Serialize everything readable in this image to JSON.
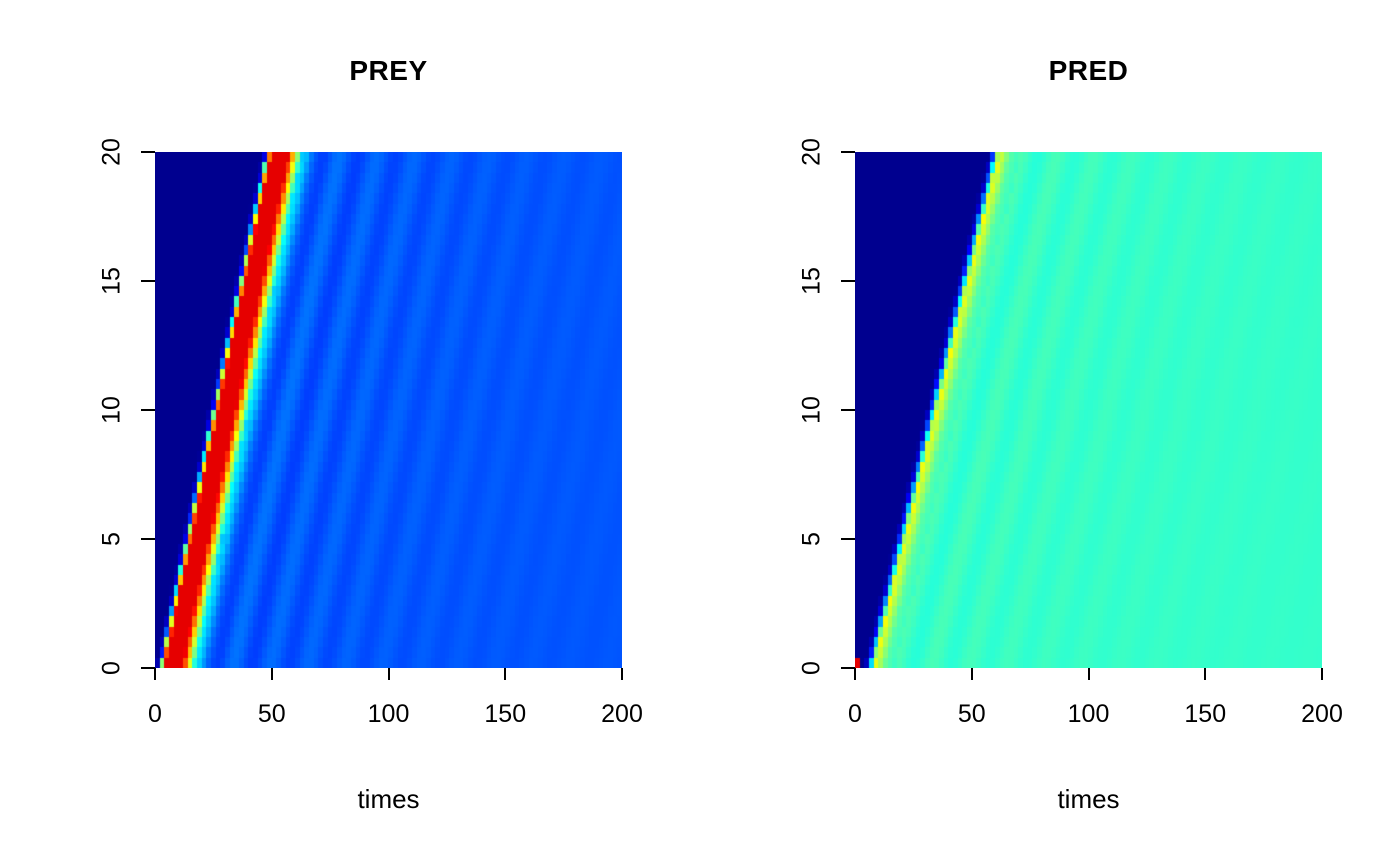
{
  "figure": {
    "background": "#ffffff",
    "description": "Two-panel space-time heatmap (R image plot style) of a predator-prey reaction-diffusion simulation showing traveling wave fronts; x-axis = times (0-200), y-axis = space (0-20), jet colormap from dark blue (low) to dark red (high)"
  },
  "chart_data": [
    {
      "type": "heatmap",
      "title": "PREY",
      "xlabel": "times",
      "ylabel": "",
      "xlim": [
        0,
        200
      ],
      "ylim": [
        0,
        20
      ],
      "xtick_values": [
        0,
        50,
        100,
        150,
        200
      ],
      "xticks": [
        "0",
        "50",
        "100",
        "150",
        "200"
      ],
      "ytick_values": [
        0,
        5,
        10,
        15,
        20
      ],
      "yticks": [
        "0",
        "5",
        "10",
        "15",
        "20"
      ],
      "grid": {
        "nx": 100,
        "ny": 50
      },
      "colormap": {
        "name": "jet",
        "stops": [
          [
            0,
            "#00008F"
          ],
          [
            0.125,
            "#0000FF"
          ],
          [
            0.375,
            "#00FFFF"
          ],
          [
            0.625,
            "#FFFF00"
          ],
          [
            0.875,
            "#FF0000"
          ],
          [
            1,
            "#800000"
          ]
        ]
      },
      "wave": {
        "description": "Traveling prey pulse: near-zero (dark navy) ahead of front, sharp red crest moving from t~2 at y=0 to t~50 at y=20, relaxing behind the front to ~0.2 (royal blue) with faint damped oscillatory stripes parallel to the front",
        "front_time_at_y0": 1.5,
        "front_speed_dt_per_dy": 2.3,
        "profile_keypoints": [
          [
            -1.5,
            0
          ],
          [
            0,
            0.1
          ],
          [
            1,
            0.5
          ],
          [
            2.5,
            0.9
          ],
          [
            10,
            0.9
          ],
          [
            13,
            0.6
          ],
          [
            16,
            0.32
          ],
          [
            20,
            0.24
          ],
          [
            26,
            0.21
          ],
          [
            1000,
            0.2
          ]
        ],
        "oscillation": {
          "start": 16,
          "amplitude": 0.035,
          "period": 16,
          "decay": 70
        }
      }
    },
    {
      "type": "heatmap",
      "title": "PRED",
      "xlabel": "times",
      "ylabel": "",
      "xlim": [
        0,
        200
      ],
      "ylim": [
        0,
        20
      ],
      "xtick_values": [
        0,
        50,
        100,
        150,
        200
      ],
      "xticks": [
        "0",
        "50",
        "100",
        "150",
        "200"
      ],
      "ytick_values": [
        0,
        5,
        10,
        15,
        20
      ],
      "yticks": [
        "0",
        "5",
        "10",
        "15",
        "20"
      ],
      "grid": {
        "nx": 100,
        "ny": 50
      },
      "colormap": {
        "name": "jet",
        "stops": [
          [
            0,
            "#00008F"
          ],
          [
            0.125,
            "#0000FF"
          ],
          [
            0.375,
            "#00FFFF"
          ],
          [
            0.625,
            "#FFFF00"
          ],
          [
            0.875,
            "#FF0000"
          ],
          [
            1,
            "#800000"
          ]
        ]
      },
      "wave": {
        "description": "Predator front trailing the prey pulse: zero (dark navy) ahead, thin yellow-green overshoot at the front edge (t~5 at y=0 to t~60 at y=20), settling to ~0.41 (turquoise/cyan) behind with very faint striping; small red seed spot at the bottom-left origin",
        "front_time_at_y0": 5,
        "front_speed_dt_per_dy": 2.7,
        "profile_keypoints": [
          [
            -1.5,
            0
          ],
          [
            0,
            0.08
          ],
          [
            1.5,
            0.35
          ],
          [
            3,
            0.62
          ],
          [
            5,
            0.55
          ],
          [
            8,
            0.46
          ],
          [
            12,
            0.43
          ],
          [
            1000,
            0.41
          ]
        ],
        "oscillation": {
          "start": 12,
          "amplitude": 0.02,
          "period": 16,
          "decay": 70
        },
        "seed_spot": {
          "t_max": 2,
          "y_max": 0.4,
          "value": 0.9
        }
      }
    }
  ]
}
